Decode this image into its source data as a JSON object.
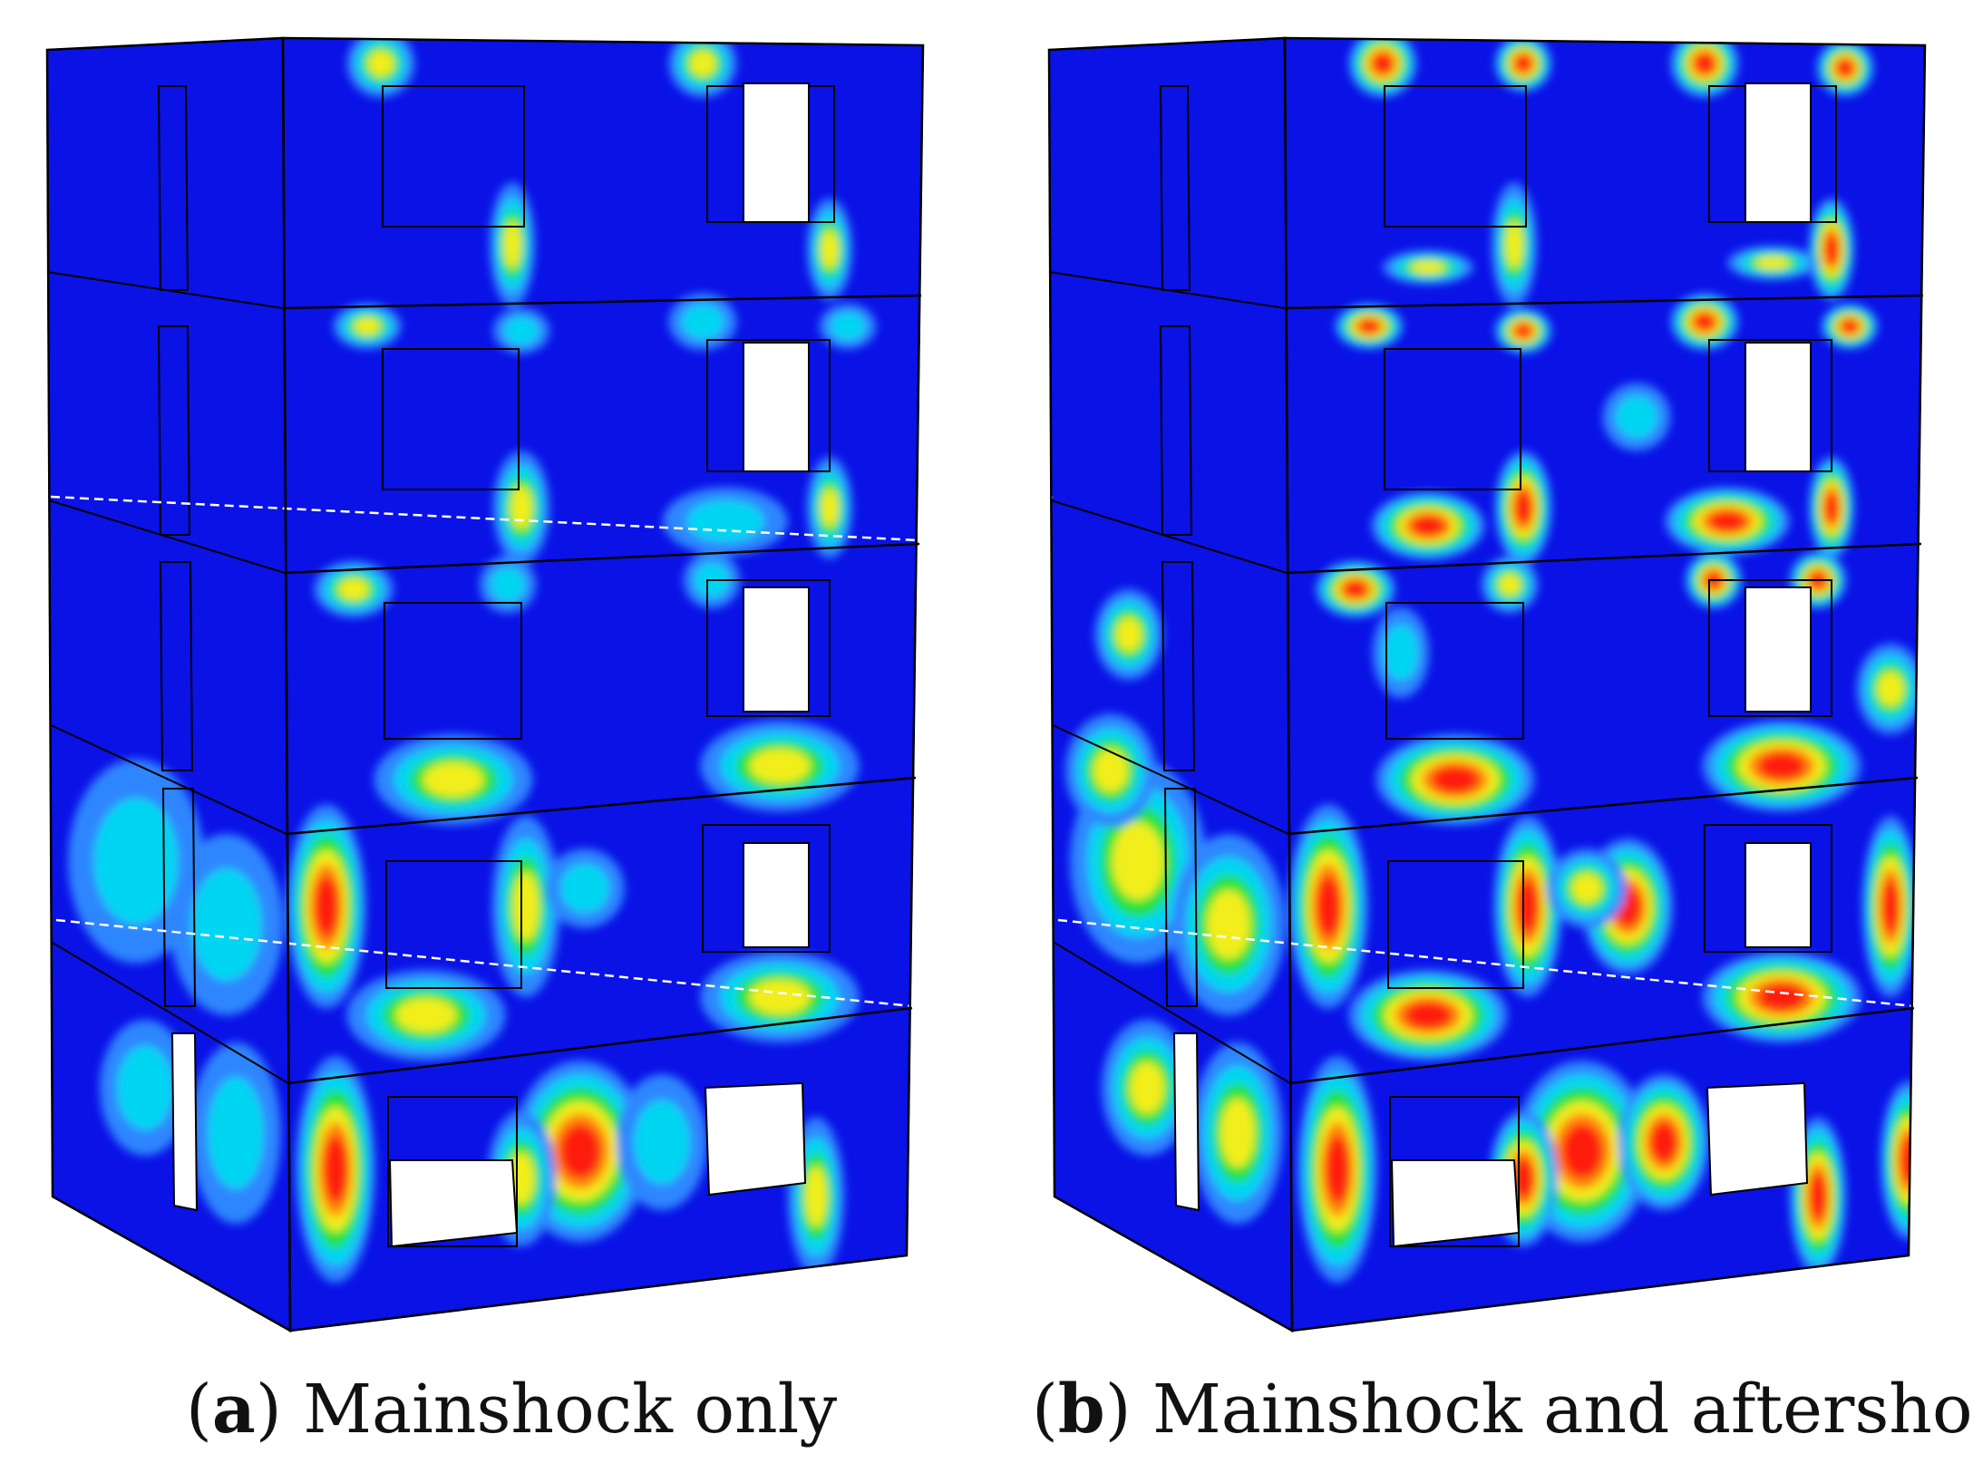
{
  "panels": [
    {
      "id": "a",
      "letter": "a",
      "caption": "Mainshock only",
      "hotspot_level": "moderate"
    },
    {
      "id": "b",
      "letter": "b",
      "caption": "Mainshock and aftershock",
      "hotspot_level": "severe"
    }
  ],
  "colors": {
    "base": "#0a12e6",
    "light_blue": "#2f86ff",
    "cyan": "#00d6f2",
    "green": "#23e23a",
    "yellow": "#f2ee1c",
    "orange": "#ff8a10",
    "red": "#ff1a0a",
    "outline": "#000000"
  }
}
